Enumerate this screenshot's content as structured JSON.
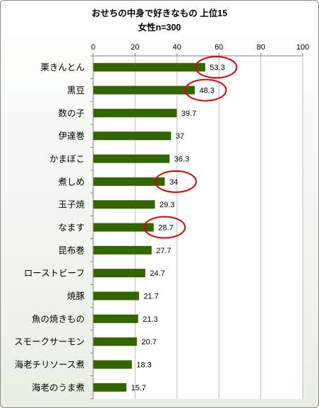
{
  "chart_data": {
    "type": "bar",
    "orientation": "horizontal",
    "title": "おせちの中身で好きなもの 上位15",
    "subtitle": "女性n=300",
    "categories": [
      "栗きんとん",
      "黒豆",
      "数の子",
      "伊達巻",
      "かまぼこ",
      "煮しめ",
      "玉子焼",
      "なます",
      "昆布巻",
      "ローストビーフ",
      "焼豚",
      "魚の焼きもの",
      "スモークサーモン",
      "海老チリソース煮",
      "海老のうま煮"
    ],
    "values": [
      53.3,
      48.3,
      39.7,
      37,
      36.3,
      34,
      29.3,
      28.7,
      27.7,
      24.7,
      21.7,
      21.3,
      20.7,
      18.3,
      15.7
    ],
    "value_labels": [
      "53.3",
      "48.3",
      "39.7",
      "37",
      "36.3",
      "34",
      "29.3",
      "28.7",
      "27.7",
      "24.7",
      "21.7",
      "21.3",
      "20.7",
      "18.3",
      "15.7"
    ],
    "highlighted": [
      "栗きんとん",
      "黒豆",
      "煮しめ",
      "なます"
    ],
    "xlim": [
      0,
      100
    ],
    "xticks": [
      "0",
      "20",
      "40",
      "60",
      "80",
      "100"
    ],
    "x_axis_position": "top",
    "grid": true,
    "legend": "none",
    "colors": {
      "bar": "#336600",
      "highlight_ring": "#e00000",
      "grid": "#bdbdbd"
    }
  }
}
